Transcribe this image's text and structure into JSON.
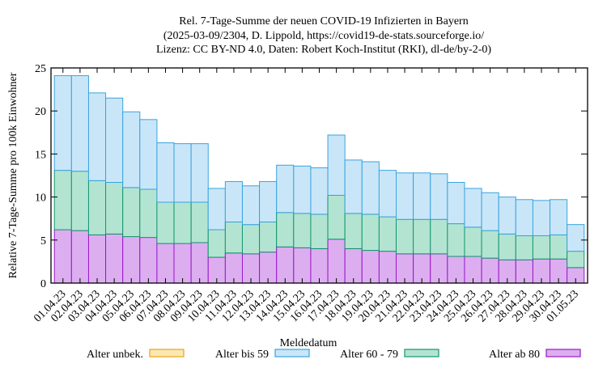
{
  "chart_data": {
    "type": "bar",
    "stacked": true,
    "title": [
      "Rel. 7-Tage-Summe der neuen COVID-19 Infizierten in Bayern",
      "(2025-03-09/2304, D. Lippold, https://covid19-de-stats.sourceforge.io/",
      "Lizenz: CC BY-ND 4.0, Daten: Robert Koch-Institut (RKI), dl-de/by-2-0)"
    ],
    "xlabel": "Meldedatum",
    "ylabel": "Relative 7-Tage-Summe pro 100k Einwohner",
    "ylim": [
      0,
      25
    ],
    "yticks": [
      0,
      5,
      10,
      15,
      20,
      25
    ],
    "categories": [
      "01.04.23",
      "02.04.23",
      "03.04.23",
      "04.04.23",
      "05.04.23",
      "06.04.23",
      "07.04.23",
      "08.04.23",
      "09.04.23",
      "10.04.23",
      "11.04.23",
      "12.04.23",
      "13.04.23",
      "14.04.23",
      "15.04.23",
      "16.04.23",
      "17.04.23",
      "18.04.23",
      "19.04.23",
      "20.04.23",
      "21.04.23",
      "22.04.23",
      "23.04.23",
      "24.04.23",
      "25.04.23",
      "26.04.23",
      "27.04.23",
      "28.04.23",
      "29.04.23",
      "30.04.23",
      "01.05.23"
    ],
    "series": [
      {
        "name": "Alter ab 80",
        "color": "#dcaef0",
        "edge": "#9a17c8",
        "values": [
          6.2,
          6.1,
          5.6,
          5.7,
          5.4,
          5.3,
          4.6,
          4.6,
          4.7,
          3.0,
          3.5,
          3.4,
          3.6,
          4.2,
          4.1,
          4.0,
          5.1,
          4.0,
          3.8,
          3.7,
          3.4,
          3.4,
          3.4,
          3.1,
          3.1,
          2.9,
          2.7,
          2.7,
          2.8,
          2.8,
          1.8
        ]
      },
      {
        "name": "Alter 60 - 79",
        "color": "#b3e4d2",
        "edge": "#14956f",
        "values": [
          6.9,
          6.9,
          6.3,
          6.0,
          5.7,
          5.6,
          4.8,
          4.8,
          4.7,
          3.2,
          3.6,
          3.4,
          3.5,
          4.0,
          4.0,
          4.0,
          5.1,
          4.1,
          4.2,
          4.0,
          4.0,
          4.0,
          4.0,
          3.8,
          3.4,
          3.2,
          3.0,
          2.8,
          2.7,
          2.8,
          1.9
        ]
      },
      {
        "name": "Alter bis 59",
        "color": "#c9e6f8",
        "edge": "#3aa3de",
        "values": [
          11.0,
          11.1,
          10.2,
          9.8,
          8.8,
          8.1,
          6.9,
          6.8,
          6.8,
          4.8,
          4.7,
          4.5,
          4.7,
          5.5,
          5.5,
          5.4,
          7.0,
          6.2,
          6.1,
          5.4,
          5.4,
          5.4,
          5.3,
          4.8,
          4.5,
          4.4,
          4.3,
          4.2,
          4.1,
          4.1,
          3.1
        ]
      },
      {
        "name": "Alter unbek.",
        "color": "#fde7b0",
        "edge": "#e3a520",
        "values": [
          0,
          0,
          0,
          0,
          0,
          0,
          0,
          0,
          0,
          0,
          0,
          0,
          0,
          0,
          0,
          0,
          0,
          0,
          0,
          0,
          0,
          0,
          0,
          0,
          0,
          0,
          0,
          0,
          0,
          0,
          0
        ]
      }
    ],
    "legend": {
      "placement": "bottom",
      "order": [
        "Alter unbek.",
        "Alter bis 59",
        "Alter 60 - 79",
        "Alter ab 80"
      ]
    },
    "grid": false
  }
}
